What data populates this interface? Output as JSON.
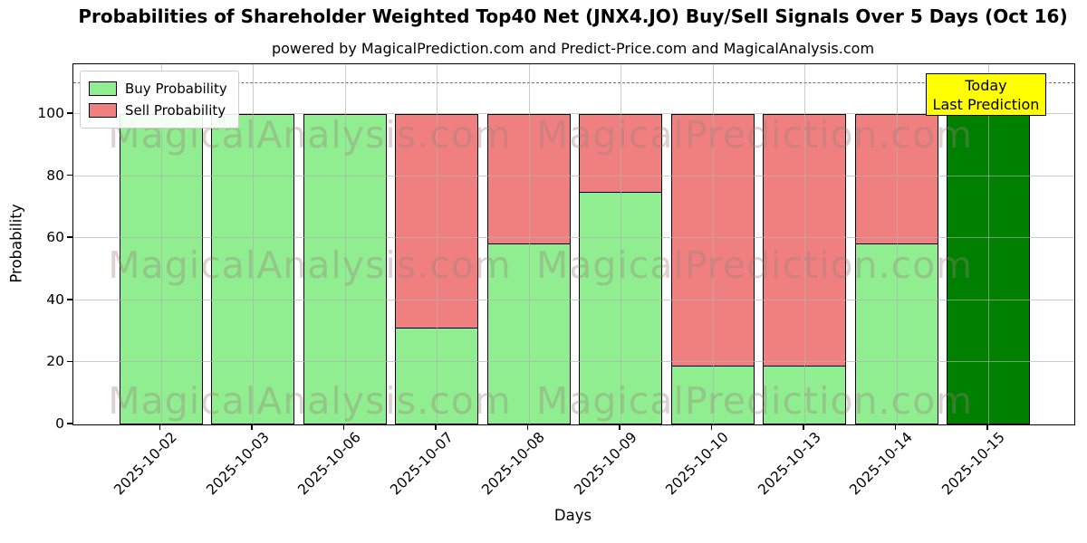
{
  "title": "Probabilities of Shareholder Weighted Top40 Net  (JNX4.JO) Buy/Sell Signals Over 5 Days (Oct 16)",
  "subtitle": "powered by MagicalPrediction.com and Predict-Price.com and MagicalAnalysis.com",
  "legend": {
    "buy_label": "Buy Probability",
    "sell_label": "Sell Probability"
  },
  "annotation": {
    "line1": "Today",
    "line2": "Last Prediction",
    "bg_color": "#FFFF00"
  },
  "axes": {
    "xlabel": "Days",
    "ylabel": "Probability"
  },
  "watermarks": {
    "left_text": "MagicalAnalysis.com",
    "right_text": "MagicalPrediction.com"
  },
  "colors": {
    "buy": "#90EE90",
    "sell": "#F08080",
    "today_bar": "#008000",
    "bar_edge": "#000000",
    "grid": "#b0b0b0",
    "dashed_line": "#6e6e6e",
    "annotation_bg": "#FFFF00"
  },
  "chart_data": {
    "type": "bar",
    "stacked": true,
    "title": "Probabilities of Shareholder Weighted Top40 Net  (JNX4.JO) Buy/Sell Signals Over 5 Days (Oct 16)",
    "xlabel": "Days",
    "ylabel": "Probability",
    "categories": [
      "2025-10-02",
      "2025-10-03",
      "2025-10-06",
      "2025-10-07",
      "2025-10-08",
      "2025-10-09",
      "2025-10-10",
      "2025-10-13",
      "2025-10-14",
      "2025-10-15"
    ],
    "series": [
      {
        "name": "Buy Probability",
        "color": "#90EE90",
        "values": [
          100,
          100,
          100,
          31.5,
          58.5,
          75,
          19,
          19,
          58.5,
          100
        ]
      },
      {
        "name": "Sell Probability",
        "color": "#F08080",
        "values": [
          0,
          0,
          0,
          68.5,
          41.5,
          25,
          81,
          81,
          41.5,
          0
        ]
      }
    ],
    "today_index": 9,
    "today_bar_color": "#008000",
    "ylim": [
      0,
      116
    ],
    "yticks": [
      0,
      20,
      40,
      60,
      80,
      100
    ],
    "dashed_line_y": 110,
    "grid": true,
    "legend_position": "upper left"
  }
}
